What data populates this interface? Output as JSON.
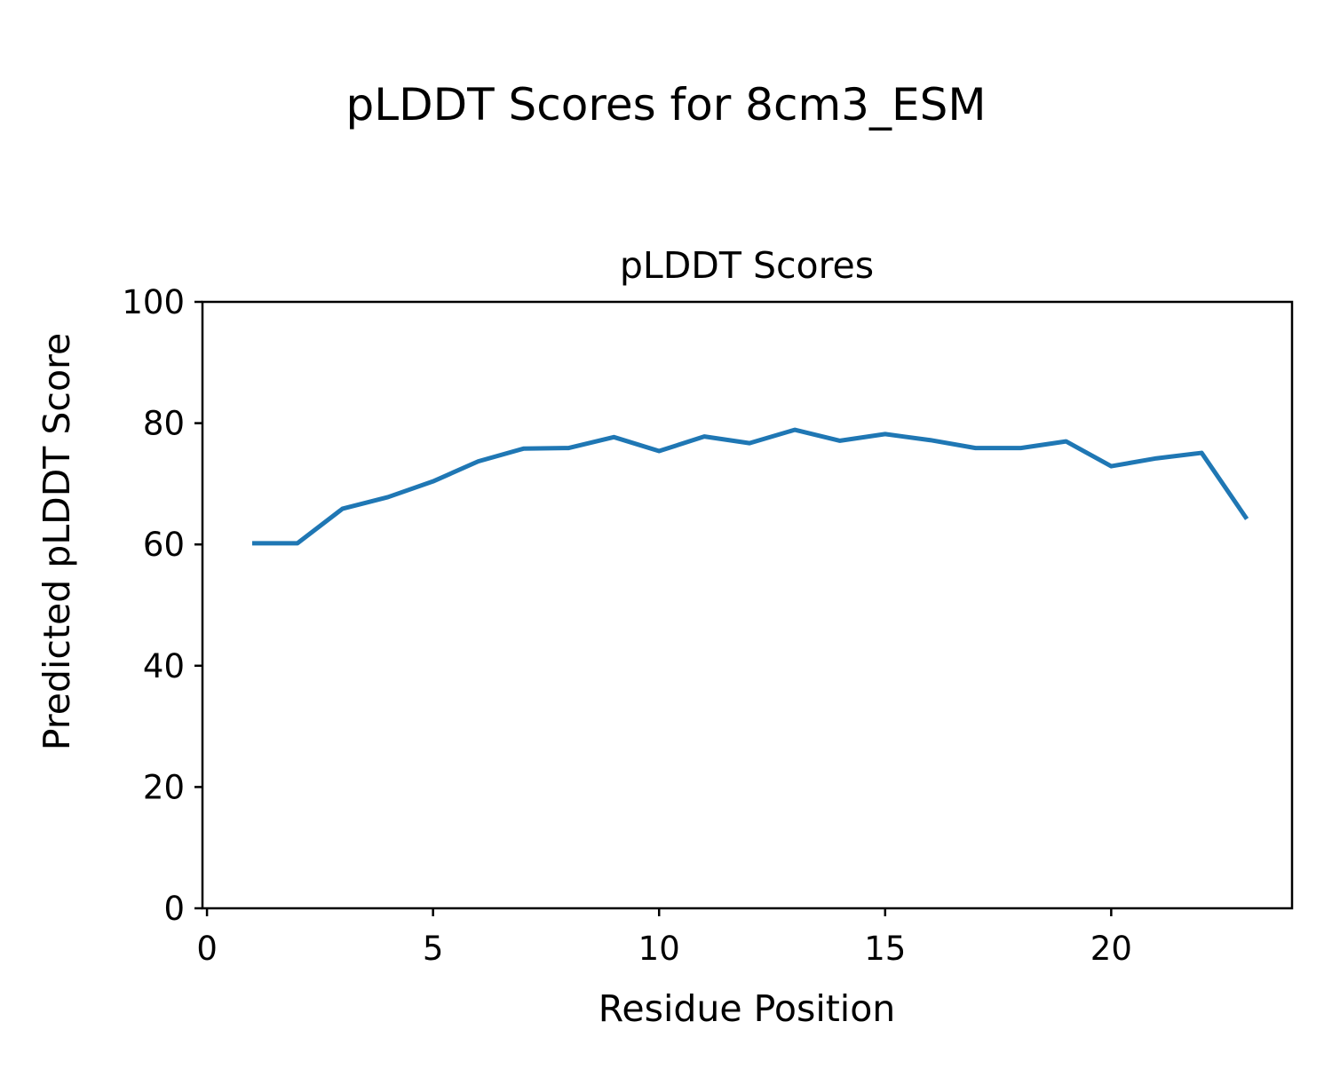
{
  "suptitle": "pLDDT Scores for 8cm3_ESM",
  "chart_data": {
    "type": "line",
    "title": "pLDDT Scores",
    "xlabel": "Residue Position",
    "ylabel": "Predicted pLDDT Score",
    "x": [
      1,
      2,
      3,
      4,
      5,
      6,
      7,
      8,
      9,
      10,
      11,
      12,
      13,
      14,
      15,
      16,
      17,
      18,
      19,
      20,
      21,
      22,
      23
    ],
    "series": [
      {
        "name": "pLDDT",
        "color": "#1f77b4",
        "values": [
          60.2,
          60.2,
          65.9,
          67.8,
          70.4,
          73.7,
          75.8,
          75.9,
          77.7,
          75.4,
          77.8,
          76.7,
          78.9,
          77.1,
          78.2,
          77.2,
          75.9,
          75.9,
          77.0,
          72.9,
          74.2,
          75.1,
          64.2
        ]
      }
    ],
    "xlim": [
      -0.1,
      24.0
    ],
    "ylim": [
      0,
      100
    ],
    "xticks": [
      0,
      5,
      10,
      15,
      20
    ],
    "yticks": [
      0,
      20,
      40,
      60,
      80,
      100
    ],
    "grid": false,
    "legend": "none",
    "line_color": "#1f77b4",
    "axis_color": "#000000",
    "background_color": "#ffffff"
  }
}
